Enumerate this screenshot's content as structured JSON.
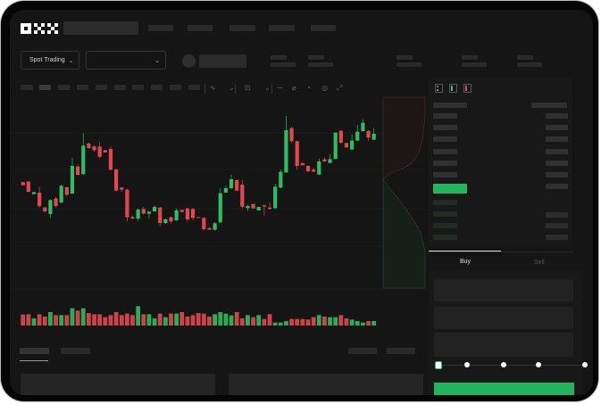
{
  "brand": {
    "logo_text": "OKX"
  },
  "toolbar": {
    "market_selector_label": "Spot Trading",
    "pair_selector_value": ""
  },
  "order_form": {
    "buy_tab": "Buy",
    "sell_tab": "Sell",
    "leverage_slider_value_percent": 0,
    "buy_button_label": ""
  },
  "colors": {
    "up": "#2ebd5f",
    "down": "#e0484e",
    "background": "#151515",
    "placeholder": "#2a2a2a"
  },
  "icons": [
    "indicator-icon",
    "chart-type-icon",
    "line-tool-icon",
    "ruler-icon",
    "camera-icon",
    "settings-icon",
    "fullscreen-icon",
    "orderbook-both-icon",
    "orderbook-buy-icon",
    "orderbook-sell-icon"
  ],
  "chart_data": {
    "type": "candlestick",
    "candles": [
      [
        350,
        352,
        338,
        340
      ],
      [
        352,
        355,
        315,
        318
      ],
      [
        310,
        317,
        310,
        317
      ],
      [
        315,
        335,
        265,
        270
      ],
      [
        265,
        268,
        248,
        252
      ],
      [
        243,
        292,
        230,
        290
      ],
      [
        295,
        300,
        265,
        270
      ],
      [
        282,
        342,
        278,
        338
      ],
      [
        333,
        335,
        303,
        308
      ],
      [
        312,
        432,
        310,
        405
      ],
      [
        403,
        410,
        372,
        375
      ],
      [
        377,
        515,
        375,
        473
      ],
      [
        480,
        483,
        463,
        465
      ],
      [
        470,
        475,
        453,
        458
      ],
      [
        470,
        485,
        430,
        435
      ],
      [
        458,
        458,
        450,
        450
      ],
      [
        462,
        470,
        390,
        392
      ],
      [
        393,
        395,
        320,
        322
      ],
      [
        332,
        335,
        318,
        325
      ],
      [
        325,
        328,
        218,
        232
      ],
      [
        233,
        238,
        225,
        228
      ],
      [
        228,
        262,
        220,
        258
      ],
      [
        260,
        267,
        240,
        245
      ],
      [
        244,
        252,
        228,
        251
      ],
      [
        252,
        272,
        250,
        267
      ],
      [
        265,
        267,
        202,
        213
      ],
      [
        213,
        228,
        210,
        225
      ],
      [
        232,
        235,
        212,
        218
      ],
      [
        222,
        262,
        220,
        255
      ],
      [
        257,
        257,
        250,
        250
      ],
      [
        262,
        264,
        218,
        225
      ],
      [
        260,
        264,
        222,
        230
      ],
      [
        233,
        233,
        230,
        230
      ],
      [
        230,
        233,
        190,
        192
      ],
      [
        196,
        200,
        190,
        190
      ],
      [
        190,
        215,
        187,
        212
      ],
      [
        215,
        330,
        212,
        313
      ],
      [
        315,
        338,
        315,
        330
      ],
      [
        330,
        375,
        328,
        360
      ],
      [
        357,
        360,
        320,
        322
      ],
      [
        342,
        357,
        262,
        268
      ],
      [
        263,
        275,
        253,
        270
      ],
      [
        277,
        277,
        262,
        262
      ],
      [
        255,
        267,
        255,
        267
      ],
      [
        272,
        275,
        238,
        268
      ],
      [
        265,
        282,
        258,
        260
      ],
      [
        263,
        345,
        260,
        335
      ],
      [
        332,
        392,
        330,
        385
      ],
      [
        383,
        573,
        382,
        525
      ],
      [
        532,
        537,
        482,
        488
      ],
      [
        488,
        490,
        392,
        405
      ],
      [
        415,
        415,
        407,
        407
      ],
      [
        405,
        407,
        383,
        387
      ],
      [
        392,
        400,
        384,
        386
      ],
      [
        376,
        430,
        374,
        420
      ],
      [
        427,
        435,
        418,
        420
      ],
      [
        415,
        445,
        414,
        428
      ],
      [
        428,
        517,
        428,
        517
      ],
      [
        523,
        525,
        478,
        483
      ],
      [
        482,
        482,
        467,
        467
      ],
      [
        460,
        510,
        458,
        490
      ],
      [
        490,
        543,
        489,
        520
      ],
      [
        522,
        563,
        520,
        550
      ],
      [
        522,
        525,
        488,
        500
      ],
      [
        493,
        533,
        491,
        513
      ]
    ],
    "volume": [
      37,
      38,
      24,
      38,
      30,
      45,
      35,
      35,
      35,
      58,
      50,
      58,
      42,
      38,
      38,
      28,
      35,
      45,
      35,
      40,
      35,
      65,
      38,
      38,
      24,
      40,
      28,
      40,
      40,
      45,
      30,
      35,
      42,
      40,
      30,
      38,
      45,
      40,
      34,
      45,
      24,
      35,
      28,
      35,
      22,
      38,
      10,
      10,
      15,
      22,
      22,
      22,
      20,
      28,
      35,
      30,
      28,
      28,
      35,
      24,
      20,
      15,
      10,
      15,
      15
    ]
  }
}
